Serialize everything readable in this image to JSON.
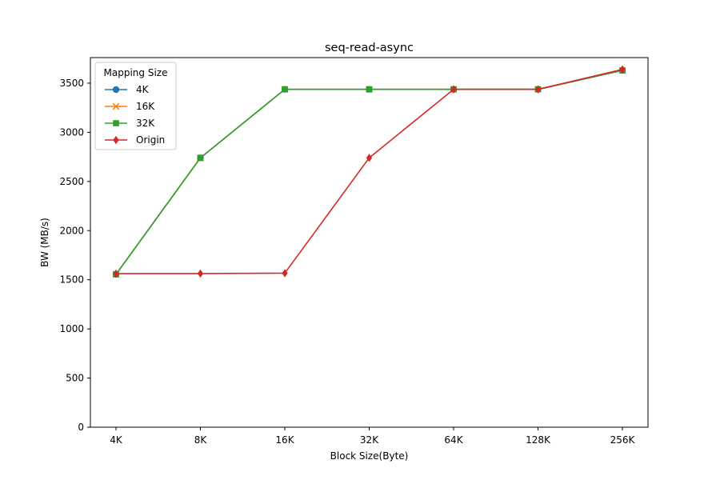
{
  "chart_data": {
    "type": "line",
    "title": "seq-read-async",
    "xlabel": "Block Size(Byte)",
    "ylabel": "BW (MB/s)",
    "categories": [
      "4K",
      "8K",
      "16K",
      "32K",
      "64K",
      "128K",
      "256K"
    ],
    "ylim": [
      0,
      3760
    ],
    "yticks": [
      0,
      500,
      1000,
      1500,
      2000,
      2500,
      3000,
      3500
    ],
    "grid": false,
    "legend": {
      "title": "Mapping Size",
      "placement": "top-left"
    },
    "series": [
      {
        "name": "4K",
        "color": "#1f77b4",
        "marker": "circle",
        "values": [
          1555,
          2740,
          3437,
          3437,
          3437,
          3437,
          3630
        ]
      },
      {
        "name": "16K",
        "color": "#ff7f0e",
        "marker": "x",
        "values": [
          1555,
          2740,
          3437,
          3437,
          3437,
          3437,
          3630
        ]
      },
      {
        "name": "32K",
        "color": "#2ca02c",
        "marker": "square",
        "values": [
          1555,
          2740,
          3437,
          3437,
          3437,
          3437,
          3630
        ]
      },
      {
        "name": "Origin",
        "color": "#d62728",
        "marker": "diamond",
        "values": [
          1562,
          1563,
          1567,
          2740,
          3437,
          3437,
          3640
        ]
      }
    ]
  }
}
